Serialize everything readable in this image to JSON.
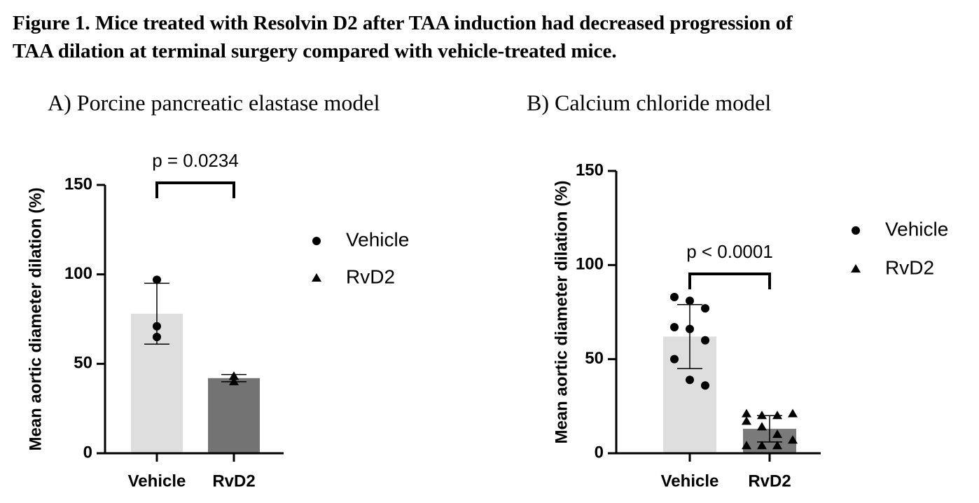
{
  "caption": [
    "Figure 1. Mice treated with Resolvin D2 after TAA induction had decreased progression of",
    "TAA dilation at terminal surgery compared with vehicle-treated mice."
  ],
  "chart_data": [
    {
      "type": "bar",
      "title": "A)  Porcine pancreatic elastase model",
      "ylabel": "Mean aortic diameter dilation (%)",
      "categories": [
        "Vehicle",
        "RvD2"
      ],
      "values": [
        78,
        42
      ],
      "errors": [
        17,
        2
      ],
      "colors": [
        "#dedede",
        "#737373"
      ],
      "points": [
        [
          97,
          71,
          65
        ],
        [
          40,
          43,
          43
        ]
      ],
      "ylim": [
        0,
        150
      ],
      "yticks": [
        0,
        50,
        100,
        150
      ],
      "annotation": "p = 0.0234",
      "legend": [
        {
          "name": "Vehicle",
          "marker": "circle"
        },
        {
          "name": "RvD2",
          "marker": "triangle"
        }
      ]
    },
    {
      "type": "bar",
      "title": "B)  Calcium chloride model",
      "ylabel": "Mean aortic diameter dilation (%)",
      "categories": [
        "Vehicle",
        "RvD2"
      ],
      "values": [
        62,
        13
      ],
      "errors": [
        17,
        7
      ],
      "colors": [
        "#dedede",
        "#7a7a7a"
      ],
      "points": [
        [
          83,
          81,
          77,
          67,
          66,
          60,
          50,
          39,
          36
        ],
        [
          21,
          20,
          20,
          21,
          17,
          14,
          10,
          7,
          4,
          4,
          4
        ]
      ],
      "ylim": [
        0,
        150
      ],
      "yticks": [
        0,
        50,
        100,
        150
      ],
      "annotation": "p < 0.0001",
      "legend": [
        {
          "name": "Vehicle",
          "marker": "circle"
        },
        {
          "name": "RvD2",
          "marker": "triangle"
        }
      ]
    }
  ]
}
